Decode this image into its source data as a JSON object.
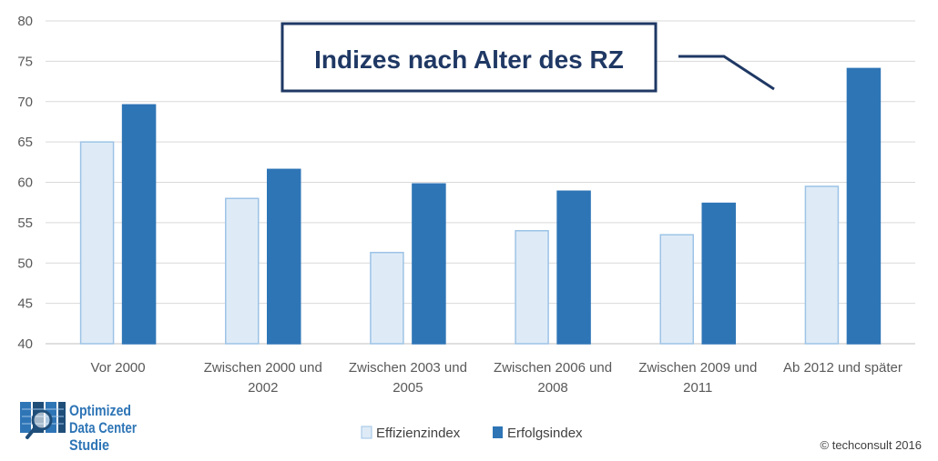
{
  "chart_data": {
    "type": "bar",
    "title": "Indizes nach Alter des RZ",
    "categories": [
      [
        "Vor 2000"
      ],
      [
        "Zwischen 2000 und",
        "2002"
      ],
      [
        "Zwischen 2003 und",
        "2005"
      ],
      [
        "Zwischen 2006 und",
        "2008"
      ],
      [
        "Zwischen 2009 und",
        "2011"
      ],
      [
        "Ab 2012 und später"
      ]
    ],
    "series": [
      {
        "name": "Effizienzindex",
        "values": [
          65.0,
          58.0,
          51.3,
          54.0,
          53.5,
          59.5
        ],
        "color": "#deebf7",
        "stroke": "#9dc3e6"
      },
      {
        "name": "Erfolgsindex",
        "values": [
          69.6,
          61.6,
          59.8,
          58.9,
          57.4,
          74.1
        ],
        "color": "#2e75b6",
        "stroke": "#2e75b6"
      }
    ],
    "ylim": [
      40,
      80
    ],
    "yticks": [
      40,
      45,
      50,
      55,
      60,
      65,
      70,
      75,
      80
    ],
    "grid": true,
    "legend": "bottom-center"
  },
  "logo": {
    "lines": [
      "Optimized",
      "Data Center",
      "Studie"
    ]
  },
  "copyright": "© techconsult 2016",
  "colors": {
    "title_border": "#1f3864",
    "grid": "#d9d9d9",
    "axis": "#bfbfbf"
  }
}
